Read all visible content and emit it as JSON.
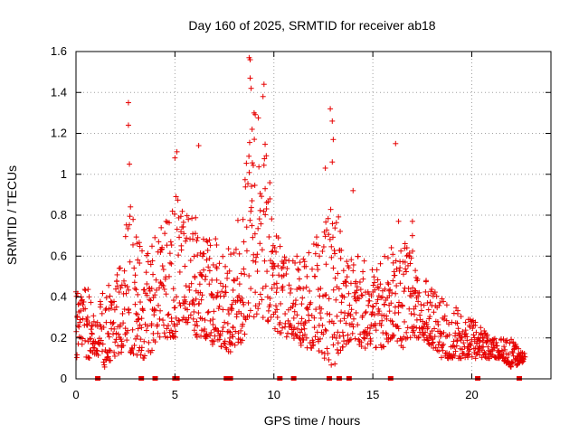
{
  "chart_data": {
    "type": "scatter",
    "title": "Day 160 of 2025, SRMTID for receiver ab18",
    "xlabel": "GPS time / hours",
    "ylabel": "SRMTID / TECUs",
    "xlim": [
      0,
      24
    ],
    "ylim": [
      0,
      1.6
    ],
    "x_ticks": [
      0,
      5,
      10,
      15,
      20
    ],
    "x_tick_labels": [
      "0",
      "5",
      "10",
      "15",
      "20"
    ],
    "y_ticks": [
      0,
      0.2,
      0.4,
      0.6,
      0.8,
      1.0,
      1.2,
      1.4,
      1.6
    ],
    "y_tick_labels": [
      "0",
      "0.2",
      "0.4",
      "0.6",
      "0.8",
      "1",
      "1.2",
      "1.4",
      "1.6"
    ],
    "grid": true,
    "marker": "plus",
    "color": "#e60000",
    "envelope": {
      "description": "Approximate scattered SRMTID level over time, sampled [hour, low, high]",
      "samples": [
        [
          0.0,
          0.1,
          0.45
        ],
        [
          0.5,
          0.1,
          0.5
        ],
        [
          1.0,
          0.1,
          0.3
        ],
        [
          1.5,
          0.05,
          0.5
        ],
        [
          2.0,
          0.1,
          0.45
        ],
        [
          2.5,
          0.15,
          0.9
        ],
        [
          3.0,
          0.1,
          0.8
        ],
        [
          3.5,
          0.1,
          0.6
        ],
        [
          4.0,
          0.15,
          0.7
        ],
        [
          4.5,
          0.2,
          0.8
        ],
        [
          5.0,
          0.2,
          0.9
        ],
        [
          5.5,
          0.25,
          0.85
        ],
        [
          6.0,
          0.2,
          0.8
        ],
        [
          6.5,
          0.2,
          0.7
        ],
        [
          7.0,
          0.15,
          0.7
        ],
        [
          7.5,
          0.15,
          0.6
        ],
        [
          8.0,
          0.1,
          0.7
        ],
        [
          8.5,
          0.2,
          1.0
        ],
        [
          9.0,
          0.3,
          1.4
        ],
        [
          9.5,
          0.3,
          1.2
        ],
        [
          10.0,
          0.25,
          0.8
        ],
        [
          10.5,
          0.2,
          0.6
        ],
        [
          11.0,
          0.2,
          0.6
        ],
        [
          11.5,
          0.15,
          0.6
        ],
        [
          12.0,
          0.15,
          0.7
        ],
        [
          12.5,
          0.1,
          0.8
        ],
        [
          13.0,
          0.05,
          0.9
        ],
        [
          13.5,
          0.15,
          0.7
        ],
        [
          14.0,
          0.2,
          0.6
        ],
        [
          14.5,
          0.15,
          0.6
        ],
        [
          15.0,
          0.15,
          0.55
        ],
        [
          15.5,
          0.15,
          0.6
        ],
        [
          16.0,
          0.2,
          0.65
        ],
        [
          16.5,
          0.15,
          0.7
        ],
        [
          17.0,
          0.2,
          0.65
        ],
        [
          17.5,
          0.2,
          0.5
        ],
        [
          18.0,
          0.15,
          0.45
        ],
        [
          18.5,
          0.1,
          0.4
        ],
        [
          19.0,
          0.1,
          0.35
        ],
        [
          19.5,
          0.1,
          0.35
        ],
        [
          20.0,
          0.1,
          0.3
        ],
        [
          20.5,
          0.1,
          0.25
        ],
        [
          21.0,
          0.1,
          0.2
        ],
        [
          21.5,
          0.1,
          0.2
        ],
        [
          22.0,
          0.05,
          0.2
        ],
        [
          22.5,
          0.08,
          0.13
        ]
      ]
    },
    "spikes": [
      [
        2.65,
        1.35
      ],
      [
        2.65,
        1.24
      ],
      [
        2.7,
        1.05
      ],
      [
        5.1,
        1.11
      ],
      [
        5.0,
        1.08
      ],
      [
        6.2,
        1.14
      ],
      [
        8.75,
        1.57
      ],
      [
        8.8,
        1.56
      ],
      [
        8.8,
        1.47
      ],
      [
        8.85,
        1.42
      ],
      [
        9.5,
        1.44
      ],
      [
        9.45,
        1.38
      ],
      [
        9.0,
        1.3
      ],
      [
        8.9,
        1.22
      ],
      [
        12.85,
        1.32
      ],
      [
        12.95,
        1.26
      ],
      [
        13.0,
        1.17
      ],
      [
        12.6,
        1.03
      ],
      [
        12.95,
        1.06
      ],
      [
        16.15,
        1.15
      ],
      [
        14.0,
        0.92
      ],
      [
        16.3,
        0.77
      ],
      [
        17.0,
        0.77
      ],
      [
        17.0,
        0.7
      ]
    ],
    "baseline_markers_hours": [
      1.1,
      3.3,
      4.0,
      5.0,
      5.1,
      7.6,
      7.7,
      7.8,
      10.3,
      11.0,
      12.8,
      13.3,
      13.8,
      15.9,
      20.3,
      22.4
    ]
  }
}
